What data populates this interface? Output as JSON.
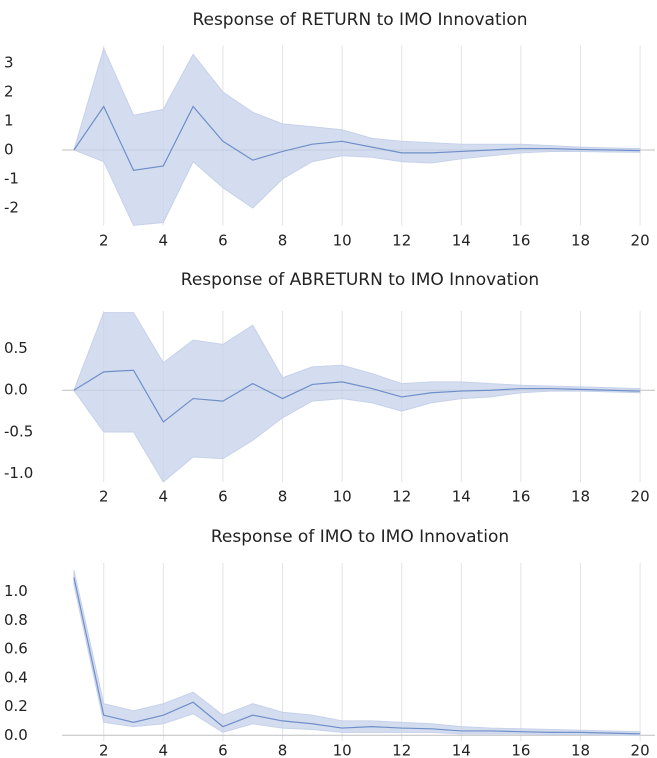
{
  "chart_data": [
    {
      "type": "line",
      "title": "Response of RETURN to IMO Innovation",
      "x": [
        1,
        2,
        3,
        4,
        5,
        6,
        7,
        8,
        9,
        10,
        11,
        12,
        13,
        14,
        15,
        16,
        17,
        18,
        19,
        20
      ],
      "values": [
        0,
        1.5,
        -0.7,
        -0.55,
        1.5,
        0.3,
        -0.35,
        -0.05,
        0.2,
        0.3,
        0.1,
        -0.1,
        -0.1,
        -0.05,
        0,
        0.05,
        0.05,
        0.02,
        0,
        -0.02
      ],
      "upper": [
        0,
        3.5,
        1.2,
        1.4,
        3.3,
        2.0,
        1.3,
        0.9,
        0.8,
        0.7,
        0.4,
        0.3,
        0.25,
        0.2,
        0.2,
        0.2,
        0.15,
        0.1,
        0.07,
        0.05
      ],
      "lower": [
        0,
        -0.4,
        -2.6,
        -2.5,
        -0.4,
        -1.3,
        -2.0,
        -1.0,
        -0.4,
        -0.2,
        -0.25,
        -0.4,
        -0.45,
        -0.3,
        -0.2,
        -0.1,
        -0.05,
        -0.05,
        -0.07,
        -0.08
      ],
      "color": "#6f8fc9",
      "band_color": "#c6d1ea",
      "xlim": [
        0.6,
        20.5
      ],
      "xticks": [
        2,
        4,
        6,
        8,
        10,
        12,
        14,
        16,
        18,
        20
      ],
      "ylim": [
        -2.6,
        3.6
      ],
      "yticks": [
        3,
        2,
        1,
        0,
        -1,
        -2
      ],
      "grid": true
    },
    {
      "type": "line",
      "title": "Response of ABRETURN to IMO Innovation",
      "x": [
        1,
        2,
        3,
        4,
        5,
        6,
        7,
        8,
        9,
        10,
        11,
        12,
        13,
        14,
        15,
        16,
        17,
        18,
        19,
        20
      ],
      "values": [
        0,
        0.22,
        0.24,
        -0.38,
        -0.1,
        -0.13,
        0.08,
        -0.1,
        0.07,
        0.1,
        0.02,
        -0.08,
        -0.03,
        -0.01,
        0,
        0.02,
        0.02,
        0.01,
        0,
        -0.01
      ],
      "upper": [
        0,
        0.93,
        0.93,
        0.33,
        0.6,
        0.55,
        0.78,
        0.15,
        0.28,
        0.3,
        0.2,
        0.08,
        0.1,
        0.1,
        0.08,
        0.06,
        0.05,
        0.04,
        0.03,
        0.02
      ],
      "lower": [
        0,
        -0.5,
        -0.5,
        -1.1,
        -0.8,
        -0.82,
        -0.6,
        -0.33,
        -0.13,
        -0.1,
        -0.15,
        -0.25,
        -0.15,
        -0.1,
        -0.08,
        -0.03,
        -0.01,
        -0.01,
        -0.02,
        -0.03
      ],
      "color": "#6f8fc9",
      "band_color": "#c6d1ea",
      "xlim": [
        0.6,
        20.5
      ],
      "xticks": [
        2,
        4,
        6,
        8,
        10,
        12,
        14,
        16,
        18,
        20
      ],
      "ylim": [
        -1.1,
        0.95
      ],
      "yticks": [
        0.5,
        {
          "value": 0,
          "label": "0.0"
        },
        -0.5,
        {
          "value": -1,
          "label": "-1.0"
        }
      ],
      "grid": true
    },
    {
      "type": "line",
      "title": "Response of IMO to IMO Innovation",
      "x": [
        1,
        2,
        3,
        4,
        5,
        6,
        7,
        8,
        9,
        10,
        11,
        12,
        13,
        14,
        15,
        16,
        17,
        18,
        19,
        20
      ],
      "values": [
        1.1,
        0.14,
        0.09,
        0.14,
        0.23,
        0.06,
        0.14,
        0.1,
        0.08,
        0.05,
        0.06,
        0.05,
        0.045,
        0.03,
        0.03,
        0.025,
        0.02,
        0.02,
        0.015,
        0.01
      ],
      "upper": [
        1.15,
        0.22,
        0.17,
        0.22,
        0.3,
        0.14,
        0.22,
        0.16,
        0.14,
        0.1,
        0.1,
        0.09,
        0.08,
        0.06,
        0.05,
        0.045,
        0.04,
        0.035,
        0.03,
        0.025
      ],
      "lower": [
        1.05,
        0.09,
        0.06,
        0.08,
        0.15,
        0.02,
        0.08,
        0.05,
        0.04,
        0.02,
        0.02,
        0.02,
        0.02,
        0.01,
        0.01,
        0.01,
        0.005,
        0.005,
        0.003,
        0
      ],
      "color": "#6f8fc9",
      "band_color": "#c6d1ea",
      "xlim": [
        0.6,
        20.5
      ],
      "xticks": [
        2,
        4,
        6,
        8,
        10,
        12,
        14,
        16,
        18,
        20
      ],
      "ylim": [
        -0.04,
        1.2
      ],
      "yticks": [
        {
          "value": 1,
          "label": "1.0"
        },
        0.8,
        0.6,
        0.4,
        0.2,
        {
          "value": 0,
          "label": "0.0"
        }
      ],
      "grid": true
    }
  ]
}
